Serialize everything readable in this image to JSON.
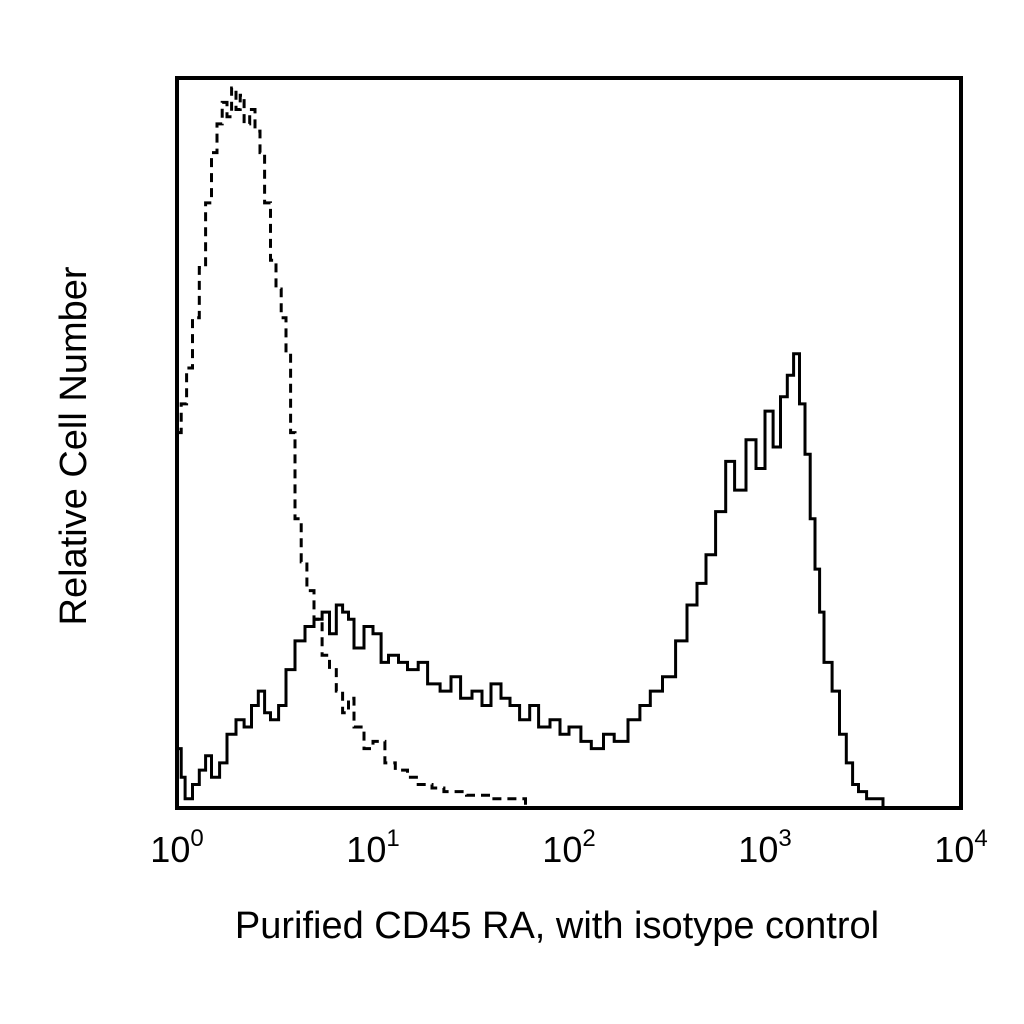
{
  "chart_data": {
    "type": "line",
    "title": "",
    "xlabel": "Purified CD45 RA, with isotype control",
    "ylabel": "Relative Cell Number",
    "x_scale": "log",
    "xlim": [
      1,
      10000
    ],
    "ylim": [
      0,
      1.0
    ],
    "x_ticks": [
      {
        "base": "10",
        "exp": "0",
        "value": 1
      },
      {
        "base": "10",
        "exp": "1",
        "value": 10
      },
      {
        "base": "10",
        "exp": "2",
        "value": 100
      },
      {
        "base": "10",
        "exp": "3",
        "value": 1000
      },
      {
        "base": "10",
        "exp": "4",
        "value": 10000
      }
    ],
    "grid": false,
    "legend": "none",
    "series": [
      {
        "style": "dashed",
        "color": "#000000",
        "x": [
          1.0,
          1.05,
          1.12,
          1.2,
          1.3,
          1.4,
          1.5,
          1.6,
          1.7,
          1.8,
          1.9,
          2.0,
          2.1,
          2.2,
          2.35,
          2.5,
          2.65,
          2.8,
          3.0,
          3.2,
          3.4,
          3.6,
          3.8,
          4.0,
          4.3,
          4.6,
          5.0,
          5.5,
          6.0,
          6.5,
          7.0,
          7.5,
          8.0,
          9.0,
          10.0,
          11.5,
          13.0,
          15.0,
          17.0,
          20.0,
          23.0,
          26.0,
          30.0,
          35.0,
          40.0,
          50.0,
          60.0
        ],
        "y": [
          0.52,
          0.56,
          0.61,
          0.68,
          0.75,
          0.84,
          0.91,
          0.95,
          0.98,
          0.96,
          1.0,
          0.97,
          0.99,
          0.95,
          0.97,
          0.94,
          0.91,
          0.84,
          0.76,
          0.72,
          0.68,
          0.63,
          0.52,
          0.4,
          0.34,
          0.3,
          0.26,
          0.21,
          0.19,
          0.16,
          0.13,
          0.15,
          0.11,
          0.08,
          0.09,
          0.06,
          0.05,
          0.04,
          0.03,
          0.025,
          0.02,
          0.02,
          0.015,
          0.015,
          0.01,
          0.01,
          0.0
        ]
      },
      {
        "style": "solid",
        "color": "#000000",
        "x": [
          1.0,
          1.05,
          1.1,
          1.2,
          1.3,
          1.4,
          1.5,
          1.65,
          1.8,
          2.0,
          2.2,
          2.4,
          2.6,
          2.8,
          3.0,
          3.3,
          3.6,
          4.0,
          4.5,
          5.0,
          5.5,
          6.0,
          6.5,
          7.0,
          7.5,
          8.0,
          9.0,
          10.0,
          11.0,
          12.0,
          13.5,
          15.0,
          17.0,
          19.0,
          22.0,
          25.0,
          28.0,
          32.0,
          36.0,
          40.0,
          45.0,
          50.0,
          56.0,
          63.0,
          70.0,
          80.0,
          90.0,
          100.0,
          115.0,
          130.0,
          150.0,
          170.0,
          200.0,
          230.0,
          260.0,
          300.0,
          350.0,
          400.0,
          450.0,
          500.0,
          560.0,
          630.0,
          700.0,
          800.0,
          900.0,
          1000.0,
          1100.0,
          1200.0,
          1300.0,
          1400.0,
          1500.0,
          1600.0,
          1700.0,
          1800.0,
          1900.0,
          2000.0,
          2200.0,
          2400.0,
          2600.0,
          2800.0,
          3000.0,
          3300.0,
          3600.0,
          4000.0
        ],
        "y": [
          0.08,
          0.04,
          0.01,
          0.03,
          0.05,
          0.07,
          0.04,
          0.06,
          0.1,
          0.12,
          0.11,
          0.14,
          0.16,
          0.13,
          0.12,
          0.14,
          0.19,
          0.23,
          0.25,
          0.26,
          0.27,
          0.24,
          0.28,
          0.27,
          0.26,
          0.22,
          0.25,
          0.24,
          0.2,
          0.21,
          0.2,
          0.19,
          0.2,
          0.17,
          0.16,
          0.18,
          0.15,
          0.16,
          0.14,
          0.17,
          0.15,
          0.14,
          0.12,
          0.14,
          0.11,
          0.12,
          0.1,
          0.11,
          0.09,
          0.08,
          0.1,
          0.09,
          0.12,
          0.14,
          0.16,
          0.18,
          0.23,
          0.28,
          0.31,
          0.35,
          0.41,
          0.48,
          0.44,
          0.51,
          0.47,
          0.55,
          0.5,
          0.57,
          0.6,
          0.63,
          0.56,
          0.49,
          0.4,
          0.33,
          0.27,
          0.2,
          0.16,
          0.1,
          0.06,
          0.03,
          0.02,
          0.01,
          0.01,
          0.0
        ]
      }
    ]
  }
}
